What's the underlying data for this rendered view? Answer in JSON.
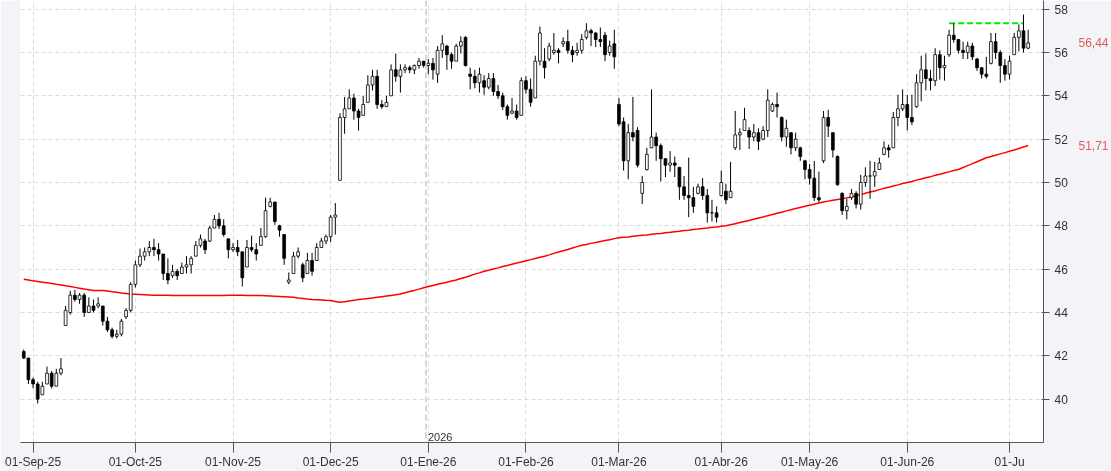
{
  "chart_data": {
    "type": "candlestick",
    "categories": [
      null,
      null,
      "01-Sep-25",
      null,
      null,
      null,
      null,
      null,
      null,
      null,
      null,
      null,
      null,
      null,
      null,
      null,
      null,
      null,
      null,
      null,
      null,
      null,
      null,
      null,
      "01-Oct-25",
      null,
      null,
      null,
      null,
      null,
      null,
      null,
      null,
      null,
      null,
      null,
      null,
      null,
      null,
      null,
      null,
      null,
      null,
      null,
      null,
      "01-Nov-25",
      null,
      null,
      null,
      null,
      null,
      null,
      null,
      null,
      null,
      null,
      null,
      null,
      null,
      null,
      null,
      null,
      null,
      null,
      null,
      null,
      "01-Dec-25",
      null,
      null,
      null,
      null,
      null,
      null,
      null,
      null,
      null,
      null,
      null,
      null,
      null,
      null,
      null,
      null,
      null,
      null,
      null,
      null,
      "01-Ene-26",
      null,
      null,
      null,
      null,
      null,
      null,
      null,
      null,
      null,
      null,
      null,
      null,
      null,
      null,
      null,
      null,
      null,
      null,
      null,
      null,
      "01-Feb-26",
      null,
      null,
      null,
      null,
      null,
      null,
      null,
      null,
      null,
      null,
      null,
      null,
      null,
      null,
      null,
      null,
      null,
      null,
      null,
      "01-Mar-26",
      null,
      null,
      null,
      null,
      null,
      null,
      null,
      null,
      null,
      null,
      null,
      null,
      null,
      null,
      null,
      null,
      null,
      null,
      null,
      null,
      null,
      "01-Abr-26",
      null,
      null,
      null,
      null,
      null,
      null,
      null,
      null,
      null,
      null,
      null,
      null,
      null,
      null,
      null,
      null,
      null,
      null,
      "01-May-26",
      null,
      null,
      null,
      null,
      null,
      null,
      null,
      null,
      null,
      null,
      null,
      null,
      null,
      null,
      null,
      null,
      null,
      null,
      null,
      null,
      "01-Jun-26",
      null,
      null,
      null,
      null,
      null,
      null,
      null,
      null,
      null,
      null,
      null,
      null,
      null,
      null,
      null,
      null,
      null,
      null,
      null,
      null,
      null,
      "01-Ju",
      null,
      null,
      null,
      null
    ],
    "ohlc": [
      [
        42.2,
        42.3,
        41.85,
        41.9
      ],
      [
        41.9,
        41.9,
        40.7,
        40.9
      ],
      [
        40.9,
        41.0,
        40.5,
        40.7
      ],
      [
        40.7,
        40.8,
        39.8,
        40.0
      ],
      [
        40.2,
        40.8,
        40.2,
        40.6
      ],
      [
        40.7,
        41.5,
        40.7,
        41.2
      ],
      [
        41.2,
        41.3,
        40.5,
        40.6
      ],
      [
        40.6,
        41.4,
        40.6,
        41.2
      ],
      [
        41.2,
        41.9,
        41.1,
        41.4
      ],
      [
        43.4,
        44.3,
        43.4,
        44.1
      ],
      [
        44.0,
        45.0,
        43.9,
        44.8
      ],
      [
        44.8,
        45.05,
        44.5,
        44.6
      ],
      [
        44.6,
        44.9,
        44.4,
        44.8
      ],
      [
        44.8,
        44.9,
        43.8,
        44.0
      ],
      [
        44.0,
        44.7,
        44.0,
        44.3
      ],
      [
        44.3,
        44.6,
        44.0,
        44.1
      ],
      [
        44.3,
        44.7,
        44.2,
        44.4
      ],
      [
        44.3,
        44.3,
        43.4,
        43.6
      ],
      [
        43.6,
        43.8,
        43.1,
        43.2
      ],
      [
        43.2,
        43.3,
        42.8,
        42.9
      ],
      [
        42.9,
        43.2,
        42.8,
        43.0
      ],
      [
        43.0,
        43.7,
        42.9,
        43.6
      ],
      [
        43.8,
        44.2,
        43.7,
        44.1
      ],
      [
        44.1,
        45.4,
        44.0,
        45.3
      ],
      [
        45.3,
        46.4,
        45.15,
        46.2
      ],
      [
        46.2,
        46.95,
        46.1,
        46.6
      ],
      [
        46.6,
        47.0,
        46.4,
        46.8
      ],
      [
        46.8,
        47.3,
        46.6,
        47.0
      ],
      [
        47.0,
        47.4,
        46.6,
        46.9
      ],
      [
        46.9,
        47.2,
        46.4,
        46.7
      ],
      [
        46.7,
        46.7,
        45.5,
        45.8
      ],
      [
        45.8,
        46.5,
        45.3,
        45.5
      ],
      [
        45.7,
        46.2,
        45.6,
        45.9
      ],
      [
        45.9,
        46.0,
        45.5,
        45.7
      ],
      [
        45.8,
        46.3,
        45.8,
        46.1
      ],
      [
        46.1,
        46.6,
        45.8,
        46.2
      ],
      [
        46.2,
        46.6,
        45.8,
        46.5
      ],
      [
        46.6,
        47.3,
        46.6,
        47.1
      ],
      [
        47.1,
        47.6,
        47.0,
        47.4
      ],
      [
        47.3,
        47.4,
        46.7,
        46.9
      ],
      [
        47.3,
        48.0,
        47.25,
        47.9
      ],
      [
        47.9,
        48.5,
        47.9,
        48.3
      ],
      [
        48.3,
        48.6,
        47.85,
        48.0
      ],
      [
        48.0,
        48.3,
        47.5,
        47.6
      ],
      [
        47.4,
        47.4,
        46.5,
        46.9
      ],
      [
        46.9,
        47.2,
        46.8,
        47.0
      ],
      [
        47.0,
        47.35,
        46.6,
        46.8
      ],
      [
        46.8,
        46.8,
        45.2,
        45.6
      ],
      [
        46.1,
        47.35,
        46.1,
        47.0
      ],
      [
        47.0,
        47.55,
        46.8,
        46.9
      ],
      [
        46.9,
        47.2,
        46.4,
        46.7
      ],
      [
        47.1,
        47.9,
        47.1,
        47.5
      ],
      [
        47.5,
        49.3,
        47.45,
        48.7
      ],
      [
        48.9,
        49.3,
        48.85,
        49.1
      ],
      [
        49.1,
        49.1,
        48.05,
        48.2
      ],
      [
        48.0,
        48.05,
        47.5,
        47.8
      ],
      [
        47.6,
        47.6,
        46.2,
        46.5
      ],
      [
        45.4,
        45.85,
        45.3,
        45.5
      ],
      [
        45.8,
        46.8,
        45.8,
        46.6
      ],
      [
        46.6,
        47.0,
        46.5,
        46.8
      ],
      [
        46.2,
        46.3,
        45.4,
        45.6
      ],
      [
        45.8,
        46.75,
        45.8,
        46.4
      ],
      [
        46.4,
        46.75,
        45.7,
        45.9
      ],
      [
        46.4,
        47.2,
        46.4,
        47.0
      ],
      [
        47.0,
        47.45,
        47.0,
        47.3
      ],
      [
        47.3,
        47.6,
        47.15,
        47.5
      ],
      [
        47.5,
        48.5,
        47.25,
        48.4
      ],
      [
        48.4,
        49.05,
        47.6,
        48.5
      ],
      [
        50.1,
        53.2,
        50.1,
        53.0
      ],
      [
        53.0,
        53.95,
        52.25,
        53.4
      ],
      [
        53.4,
        54.3,
        53.4,
        53.9
      ],
      [
        53.9,
        54.1,
        52.9,
        53.3
      ],
      [
        53.3,
        53.4,
        52.4,
        53.0
      ],
      [
        53.1,
        54.0,
        53.1,
        53.6
      ],
      [
        53.7,
        54.95,
        53.7,
        54.5
      ],
      [
        54.5,
        55.2,
        54.25,
        54.9
      ],
      [
        54.9,
        55.2,
        53.4,
        53.6
      ],
      [
        53.6,
        53.8,
        53.4,
        53.5
      ],
      [
        53.5,
        54.0,
        53.5,
        53.7
      ],
      [
        54.0,
        55.45,
        54.0,
        55.2
      ],
      [
        55.2,
        55.95,
        54.65,
        54.9
      ],
      [
        54.9,
        55.45,
        54.15,
        55.2
      ],
      [
        55.2,
        55.45,
        55.05,
        55.3
      ],
      [
        55.3,
        55.4,
        55.05,
        55.2
      ],
      [
        55.2,
        55.45,
        55.0,
        55.4
      ],
      [
        55.4,
        55.75,
        55.25,
        55.6
      ],
      [
        55.6,
        55.6,
        55.3,
        55.4
      ],
      [
        55.4,
        55.7,
        55.0,
        55.5
      ],
      [
        55.5,
        55.75,
        54.75,
        55.2
      ],
      [
        55.0,
        56.3,
        54.6,
        56.1
      ],
      [
        56.1,
        56.8,
        55.75,
        56.4
      ],
      [
        56.3,
        56.35,
        55.2,
        55.9
      ],
      [
        55.9,
        56.0,
        55.25,
        55.6
      ],
      [
        55.6,
        56.4,
        55.6,
        56.3
      ],
      [
        56.3,
        56.75,
        55.95,
        56.5
      ],
      [
        56.7,
        56.75,
        55.35,
        55.4
      ],
      [
        55.0,
        55.3,
        54.3,
        54.9
      ],
      [
        54.9,
        55.2,
        54.35,
        54.6
      ],
      [
        54.6,
        55.3,
        54.15,
        55.0
      ],
      [
        54.7,
        54.95,
        54.05,
        54.4
      ],
      [
        54.4,
        55.05,
        54.3,
        54.8
      ],
      [
        54.8,
        55.05,
        54.0,
        54.2
      ],
      [
        54.2,
        54.5,
        53.85,
        54.0
      ],
      [
        54.0,
        54.15,
        53.35,
        53.5
      ],
      [
        53.5,
        53.6,
        52.9,
        53.1
      ],
      [
        53.2,
        53.9,
        53.15,
        53.3
      ],
      [
        53.3,
        53.6,
        52.9,
        53.0
      ],
      [
        53.1,
        54.85,
        53.1,
        54.7
      ],
      [
        54.7,
        54.9,
        54.1,
        54.3
      ],
      [
        54.3,
        54.8,
        53.5,
        53.7
      ],
      [
        53.9,
        55.85,
        53.9,
        55.6
      ],
      [
        55.6,
        57.2,
        55.4,
        56.9
      ],
      [
        55.6,
        56.2,
        54.8,
        55.3
      ],
      [
        55.7,
        56.45,
        55.6,
        56.3
      ],
      [
        56.0,
        56.9,
        55.9,
        56.1
      ],
      [
        56.1,
        56.2,
        55.5,
        56.0
      ],
      [
        56.4,
        56.7,
        56.25,
        56.5
      ],
      [
        56.5,
        57.05,
        55.95,
        56.1
      ],
      [
        56.1,
        56.3,
        55.55,
        55.9
      ],
      [
        56.0,
        56.45,
        55.85,
        56.1
      ],
      [
        56.1,
        56.85,
        55.95,
        56.6
      ],
      [
        56.7,
        57.35,
        56.6,
        57.0
      ],
      [
        57.0,
        57.1,
        56.3,
        56.9
      ],
      [
        56.9,
        56.95,
        56.25,
        56.6
      ],
      [
        56.6,
        57.15,
        56.25,
        56.5
      ],
      [
        56.8,
        56.95,
        55.6,
        55.9
      ],
      [
        56.0,
        56.55,
        55.85,
        56.3
      ],
      [
        56.4,
        57.05,
        55.25,
        55.8
      ],
      [
        53.6,
        53.9,
        52.6,
        52.7
      ],
      [
        52.8,
        53.0,
        50.55,
        51.0
      ],
      [
        51.0,
        52.7,
        50.15,
        52.3
      ],
      [
        52.3,
        53.95,
        51.9,
        52.1
      ],
      [
        52.4,
        52.55,
        50.7,
        50.8
      ],
      [
        49.5,
        50.3,
        49.0,
        50.0
      ],
      [
        50.6,
        51.6,
        50.55,
        51.3
      ],
      [
        51.6,
        54.3,
        51.6,
        52.1
      ],
      [
        52.1,
        52.3,
        51.0,
        51.7
      ],
      [
        51.7,
        51.8,
        50.05,
        51.1
      ],
      [
        51.1,
        51.1,
        50.25,
        50.8
      ],
      [
        50.8,
        51.45,
        50.5,
        50.9
      ],
      [
        50.9,
        51.2,
        50.25,
        50.8
      ],
      [
        50.7,
        50.7,
        49.2,
        49.8
      ],
      [
        49.8,
        50.3,
        49.2,
        49.4
      ],
      [
        49.4,
        51.15,
        48.4,
        49.3
      ],
      [
        49.3,
        49.8,
        48.6,
        48.9
      ],
      [
        49.5,
        49.95,
        49.45,
        49.8
      ],
      [
        49.8,
        50.2,
        49.2,
        49.4
      ],
      [
        49.4,
        49.7,
        48.15,
        48.6
      ],
      [
        48.6,
        49.2,
        48.2,
        48.6
      ],
      [
        48.6,
        48.9,
        48.15,
        48.4
      ],
      [
        49.4,
        50.55,
        49.35,
        50.0
      ],
      [
        49.6,
        49.95,
        49.0,
        49.2
      ],
      [
        49.3,
        50.95,
        49.3,
        49.6
      ],
      [
        51.6,
        53.3,
        51.5,
        52.2
      ],
      [
        52.2,
        52.5,
        51.5,
        52.3
      ],
      [
        52.4,
        53.45,
        52.4,
        52.9
      ],
      [
        52.4,
        52.55,
        51.55,
        52.1
      ],
      [
        52.1,
        52.7,
        51.9,
        52.3
      ],
      [
        52.3,
        52.5,
        51.5,
        51.9
      ],
      [
        52.0,
        52.6,
        51.95,
        52.4
      ],
      [
        52.4,
        54.3,
        52.1,
        53.8
      ],
      [
        53.3,
        53.7,
        53.25,
        53.6
      ],
      [
        53.6,
        54.15,
        53.0,
        53.5
      ],
      [
        53.0,
        53.05,
        51.9,
        52.1
      ],
      [
        52.1,
        52.9,
        51.65,
        52.5
      ],
      [
        52.3,
        52.3,
        51.3,
        51.6
      ],
      [
        51.6,
        52.3,
        51.45,
        52.0
      ],
      [
        51.6,
        51.65,
        51.0,
        51.2
      ],
      [
        51.0,
        51.05,
        50.15,
        50.6
      ],
      [
        50.6,
        50.85,
        49.9,
        50.2
      ],
      [
        50.2,
        51.0,
        49.15,
        49.3
      ],
      [
        49.3,
        50.5,
        49.1,
        49.2
      ],
      [
        51.0,
        53.3,
        50.9,
        53.0
      ],
      [
        53.0,
        53.35,
        52.1,
        52.6
      ],
      [
        52.3,
        52.3,
        51.15,
        51.5
      ],
      [
        51.2,
        51.25,
        49.85,
        49.9
      ],
      [
        49.5,
        49.55,
        48.5,
        48.7
      ],
      [
        48.7,
        49.25,
        48.3,
        48.9
      ],
      [
        49.3,
        49.7,
        49.2,
        49.5
      ],
      [
        49.5,
        49.6,
        48.8,
        49.0
      ],
      [
        49.0,
        50.35,
        48.75,
        50.0
      ],
      [
        50.0,
        50.7,
        49.8,
        50.3
      ],
      [
        50.3,
        51.0,
        49.25,
        50.3
      ],
      [
        50.3,
        50.95,
        49.8,
        50.5
      ],
      [
        50.6,
        51.15,
        50.6,
        50.9
      ],
      [
        51.3,
        51.9,
        51.25,
        51.6
      ],
      [
        51.6,
        51.75,
        51.15,
        51.5
      ],
      [
        51.6,
        53.25,
        51.6,
        53.0
      ],
      [
        53.0,
        54.05,
        52.6,
        53.4
      ],
      [
        53.4,
        54.3,
        53.3,
        53.6
      ],
      [
        53.6,
        54.05,
        52.4,
        53.0
      ],
      [
        53.0,
        54.05,
        52.65,
        52.8
      ],
      [
        53.5,
        55.0,
        53.45,
        54.6
      ],
      [
        54.6,
        55.85,
        53.75,
        55.2
      ],
      [
        55.2,
        55.95,
        54.25,
        54.8
      ],
      [
        54.8,
        55.2,
        54.25,
        54.7
      ],
      [
        54.7,
        56.2,
        54.45,
        55.9
      ],
      [
        55.9,
        56.1,
        54.75,
        55.3
      ],
      [
        55.3,
        55.85,
        54.7,
        55.4
      ],
      [
        55.9,
        57.05,
        55.8,
        56.8
      ],
      [
        56.8,
        57.35,
        56.45,
        56.6
      ],
      [
        56.6,
        56.6,
        55.95,
        56.1
      ],
      [
        56.1,
        56.5,
        55.7,
        56.0
      ],
      [
        56.0,
        56.5,
        55.7,
        56.3
      ],
      [
        56.3,
        56.45,
        55.65,
        55.8
      ],
      [
        55.7,
        55.75,
        55.15,
        55.3
      ],
      [
        55.3,
        55.3,
        54.8,
        55.0
      ],
      [
        55.0,
        55.8,
        54.8,
        54.9
      ],
      [
        55.5,
        56.9,
        55.45,
        56.5
      ],
      [
        56.5,
        56.9,
        55.7,
        56.0
      ],
      [
        56.0,
        56.1,
        54.6,
        55.4
      ],
      [
        55.4,
        55.7,
        54.7,
        55.0
      ],
      [
        55.0,
        55.85,
        54.75,
        55.6
      ],
      [
        55.9,
        56.9,
        55.9,
        56.7
      ],
      [
        56.7,
        57.3,
        56.05,
        57.0
      ],
      [
        57.0,
        57.75,
        56.0,
        56.2
      ],
      [
        56.2,
        57.05,
        56.15,
        56.44
      ]
    ],
    "series": [
      {
        "type": "line",
        "color": "#ff0000",
        "values": [
          45.53,
          45.5,
          45.46,
          45.43,
          45.4,
          45.37,
          45.34,
          45.3,
          45.27,
          45.23,
          45.2,
          45.16,
          45.12,
          45.08,
          45.05,
          45.02,
          45.02,
          45.02,
          44.99,
          44.96,
          44.93,
          44.9,
          44.88,
          44.85,
          44.84,
          44.83,
          44.82,
          44.81,
          44.8,
          44.8,
          44.8,
          44.8,
          44.79,
          44.79,
          44.79,
          44.79,
          44.78,
          44.78,
          44.78,
          44.78,
          44.78,
          44.78,
          44.79,
          44.79,
          44.8,
          44.8,
          44.8,
          44.8,
          44.79,
          44.79,
          44.78,
          44.78,
          44.77,
          44.76,
          44.75,
          44.74,
          44.73,
          44.72,
          44.7,
          44.67,
          44.65,
          44.62,
          44.6,
          44.59,
          44.58,
          44.56,
          44.55,
          44.51,
          44.47,
          44.5,
          44.53,
          44.56,
          44.6,
          44.62,
          44.65,
          44.67,
          44.7,
          44.73,
          44.76,
          44.79,
          44.82,
          44.85,
          44.91,
          44.97,
          45.02,
          45.08,
          45.14,
          45.2,
          45.25,
          45.3,
          45.35,
          45.4,
          45.45,
          45.5,
          45.57,
          45.63,
          45.7,
          45.77,
          45.83,
          45.9,
          45.95,
          46.01,
          46.06,
          46.12,
          46.17,
          46.23,
          46.28,
          46.33,
          46.39,
          46.44,
          46.49,
          46.55,
          46.6,
          46.66,
          46.73,
          46.79,
          46.85,
          46.91,
          46.98,
          47.04,
          47.1,
          47.14,
          47.19,
          47.23,
          47.28,
          47.32,
          47.36,
          47.41,
          47.45,
          47.47,
          47.49,
          47.52,
          47.54,
          47.56,
          47.58,
          47.61,
          47.63,
          47.65,
          47.68,
          47.7,
          47.73,
          47.75,
          47.78,
          47.8,
          47.83,
          47.85,
          47.88,
          47.9,
          47.93,
          47.95,
          47.98,
          48.0,
          48.05,
          48.1,
          48.15,
          48.2,
          48.25,
          48.3,
          48.36,
          48.41,
          48.47,
          48.52,
          48.58,
          48.63,
          48.69,
          48.74,
          48.8,
          48.85,
          48.9,
          48.95,
          49.0,
          49.05,
          49.1,
          49.14,
          49.18,
          49.22,
          49.25,
          49.29,
          49.33,
          49.39,
          49.44,
          49.5,
          49.56,
          49.61,
          49.67,
          49.73,
          49.78,
          49.84,
          49.89,
          49.95,
          50.0,
          50.05,
          50.11,
          50.16,
          50.22,
          50.27,
          50.33,
          50.38,
          50.44,
          50.49,
          50.55,
          50.6,
          50.69,
          50.78,
          50.87,
          50.96,
          51.05,
          51.14,
          51.2,
          51.26,
          51.32,
          51.38,
          51.44,
          51.5,
          51.57,
          51.64,
          51.71
        ]
      },
      {
        "type": "line",
        "color": "#00ee00",
        "line_style": "dashed",
        "values": [
          null,
          null,
          null,
          null,
          null,
          null,
          null,
          null,
          null,
          null,
          null,
          null,
          null,
          null,
          null,
          null,
          null,
          null,
          null,
          null,
          null,
          null,
          null,
          null,
          null,
          null,
          null,
          null,
          null,
          null,
          null,
          null,
          null,
          null,
          null,
          null,
          null,
          null,
          null,
          null,
          null,
          null,
          null,
          null,
          null,
          null,
          null,
          null,
          null,
          null,
          null,
          null,
          null,
          null,
          null,
          null,
          null,
          null,
          null,
          null,
          null,
          null,
          null,
          null,
          null,
          null,
          null,
          null,
          null,
          null,
          null,
          null,
          null,
          null,
          null,
          null,
          null,
          null,
          null,
          null,
          null,
          null,
          null,
          null,
          null,
          null,
          null,
          null,
          null,
          null,
          null,
          null,
          null,
          null,
          null,
          null,
          null,
          null,
          null,
          null,
          null,
          null,
          null,
          null,
          null,
          null,
          null,
          null,
          null,
          null,
          null,
          null,
          null,
          null,
          null,
          null,
          null,
          null,
          null,
          null,
          null,
          null,
          null,
          null,
          null,
          null,
          null,
          null,
          null,
          null,
          null,
          null,
          null,
          null,
          null,
          null,
          null,
          null,
          null,
          null,
          null,
          null,
          null,
          null,
          null,
          null,
          null,
          null,
          null,
          null,
          null,
          null,
          null,
          null,
          null,
          null,
          null,
          null,
          null,
          null,
          null,
          null,
          null,
          null,
          null,
          null,
          null,
          null,
          null,
          null,
          null,
          null,
          null,
          null,
          null,
          null,
          null,
          null,
          null,
          null,
          null,
          null,
          null,
          null,
          null,
          null,
          null,
          null,
          null,
          null,
          null,
          null,
          null,
          null,
          null,
          null,
          null,
          null,
          null,
          57.35,
          57.35,
          57.35,
          57.35,
          57.35,
          57.35,
          57.35,
          57.35,
          57.35,
          57.35,
          57.35,
          57.35,
          57.35,
          57.35,
          57.35,
          57.35,
          57.35,
          null
        ]
      }
    ],
    "ylim": [
      38,
      58.4
    ],
    "yticks": [
      40,
      42,
      44,
      46,
      48,
      50,
      52,
      54,
      56,
      58
    ],
    "grid": true,
    "ref_lines": [
      {
        "axis": "x",
        "value": "01-Ene-26",
        "label": "2026",
        "color": "#c8c8c8",
        "line_style": "dashed"
      }
    ],
    "annotations": [
      "56,44",
      "51,71"
    ]
  }
}
